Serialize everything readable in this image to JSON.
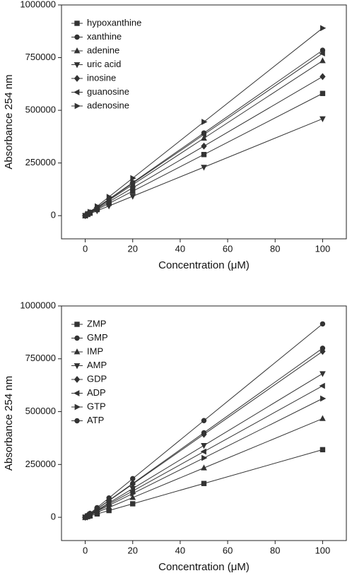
{
  "chart_data": [
    {
      "type": "line",
      "x_label": "Concentration (μM)",
      "y_label": "Absorbance 254 nm",
      "x": [
        0,
        1,
        2,
        5,
        10,
        20,
        50,
        100
      ],
      "xlim": [
        -10,
        110
      ],
      "xticks": [
        0,
        20,
        40,
        60,
        80,
        100
      ],
      "ylim": [
        -110000,
        1000000
      ],
      "yticks": [
        0,
        250000,
        500000,
        750000,
        1000000
      ],
      "legend": "upper left",
      "series": [
        {
          "name": "hypoxanthine",
          "color": "#333333",
          "values": [
            0,
            5800,
            11600,
            29000,
            58000,
            116000,
            290000,
            580000
          ]
        },
        {
          "name": "xanthine",
          "color": "#333333",
          "values": [
            0,
            7850,
            15700,
            39250,
            78500,
            157000,
            392500,
            785000
          ]
        },
        {
          "name": "adenine",
          "color": "#333333",
          "values": [
            0,
            7350,
            14700,
            36750,
            73500,
            147000,
            367500,
            735000
          ]
        },
        {
          "name": "uric acid",
          "color": "#333333",
          "values": [
            0,
            4600,
            9200,
            23000,
            46000,
            92000,
            230000,
            460000
          ]
        },
        {
          "name": "inosine",
          "color": "#333333",
          "values": [
            0,
            6600,
            13200,
            33000,
            66000,
            132000,
            330000,
            660000
          ]
        },
        {
          "name": "guanosine",
          "color": "#333333",
          "values": [
            0,
            7700,
            15400,
            38500,
            77000,
            154000,
            385000,
            770000
          ]
        },
        {
          "name": "adenosine",
          "color": "#333333",
          "values": [
            0,
            8900,
            17800,
            44500,
            89000,
            178000,
            445000,
            890000
          ]
        }
      ]
    },
    {
      "type": "line",
      "x_label": "Concentration (μM)",
      "y_label": "Absorbance 254 nm",
      "x": [
        0,
        1,
        2,
        5,
        10,
        20,
        50,
        100
      ],
      "xlim": [
        -10,
        110
      ],
      "xticks": [
        0,
        20,
        40,
        60,
        80,
        100
      ],
      "ylim": [
        -110000,
        1000000
      ],
      "yticks": [
        0,
        250000,
        500000,
        750000,
        1000000
      ],
      "legend": "upper left",
      "series": [
        {
          "name": "ZMP",
          "color": "#333333",
          "values": [
            0,
            3200,
            6400,
            16000,
            32000,
            64000,
            160000,
            320000
          ]
        },
        {
          "name": "GMP",
          "color": "#333333",
          "values": [
            0,
            8000,
            16000,
            40000,
            80000,
            160000,
            400000,
            800000
          ]
        },
        {
          "name": "IMP",
          "color": "#333333",
          "values": [
            0,
            4670,
            9340,
            23350,
            46700,
            93400,
            233500,
            467000
          ]
        },
        {
          "name": "AMP",
          "color": "#333333",
          "values": [
            0,
            6800,
            13600,
            34000,
            68000,
            136000,
            340000,
            680000
          ]
        },
        {
          "name": "GDP",
          "color": "#333333",
          "values": [
            0,
            7850,
            15700,
            39250,
            78500,
            157000,
            392500,
            785000
          ]
        },
        {
          "name": "ADP",
          "color": "#333333",
          "values": [
            0,
            6220,
            12440,
            31100,
            62200,
            124400,
            311000,
            622000
          ]
        },
        {
          "name": "GTP",
          "color": "#333333",
          "values": [
            0,
            5620,
            11240,
            28100,
            56200,
            112400,
            281000,
            562000
          ]
        },
        {
          "name": "ATP",
          "color": "#333333",
          "values": [
            0,
            9150,
            18300,
            45750,
            91500,
            183000,
            457500,
            915000
          ]
        }
      ]
    }
  ]
}
